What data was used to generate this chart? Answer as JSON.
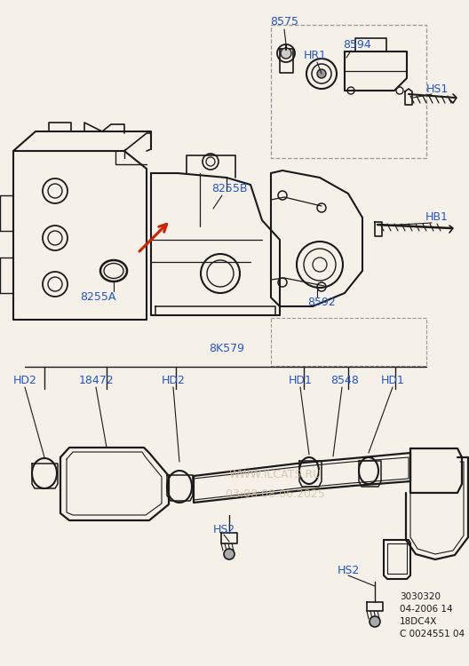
{
  "bg_color": "#f5f0e8",
  "line_color": "#1a1a1a",
  "label_color": "#2255cc",
  "red_arrow_color": "#cc2200",
  "watermark_color": "#c8bfa0",
  "watermark_lines": [
    "WWW.ILCATS.RU",
    "03:08 08.06.2025"
  ],
  "bottom_info": [
    "3030320",
    "04-2006 14",
    "18DC4X",
    "C 0024551 04"
  ]
}
